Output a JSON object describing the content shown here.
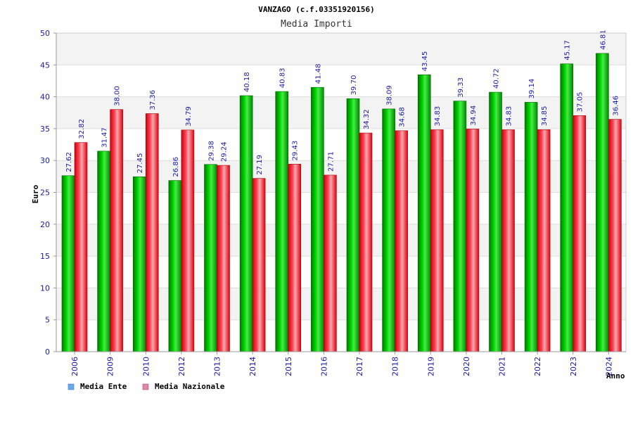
{
  "chart_data": {
    "type": "bar",
    "title": "VANZAGO (c.f.03351920156)",
    "subtitle": "Media Importi",
    "xlabel": "Anno",
    "ylabel": "Euro",
    "ylim": [
      0,
      50
    ],
    "yticks": [
      "0",
      "5",
      "10",
      "15",
      "20",
      "25",
      "30",
      "35",
      "40",
      "45",
      "50"
    ],
    "categories": [
      "2006",
      "2009",
      "2010",
      "2012",
      "2013",
      "2014",
      "2015",
      "2016",
      "2017",
      "2018",
      "2019",
      "2020",
      "2021",
      "2022",
      "2023",
      "2024"
    ],
    "series": [
      {
        "name": "Media Ente",
        "color": "#00bb00",
        "values": [
          27.62,
          31.47,
          27.45,
          26.86,
          29.38,
          40.18,
          40.83,
          41.48,
          39.7,
          38.09,
          43.45,
          39.33,
          40.72,
          39.14,
          45.17,
          46.81
        ],
        "labels": [
          "27.62",
          "31.47",
          "27.45",
          "26.86",
          "29.38",
          "40.18",
          "40.83",
          "41.48",
          "39.70",
          "38.09",
          "43.45",
          "39.33",
          "40.72",
          "39.14",
          "45.17",
          "46.81"
        ]
      },
      {
        "name": "Media Nazionale",
        "color": "#ee1122",
        "values": [
          32.82,
          38.0,
          37.36,
          34.79,
          29.24,
          27.19,
          29.43,
          27.71,
          34.32,
          34.68,
          34.83,
          34.94,
          34.83,
          34.85,
          37.05,
          36.46
        ],
        "labels": [
          "32.82",
          "38.00",
          "37.36",
          "34.79",
          "29.24",
          "27.19",
          "29.43",
          "27.71",
          "34.32",
          "34.68",
          "34.83",
          "34.94",
          "34.83",
          "34.85",
          "37.05",
          "36.46"
        ]
      }
    ],
    "legend": [
      {
        "label": "Media Ente",
        "color": "#66aaee"
      },
      {
        "label": "Media Nazionale",
        "color": "#dd88aa"
      }
    ],
    "grid": true,
    "legend_position": "bottom-left"
  }
}
